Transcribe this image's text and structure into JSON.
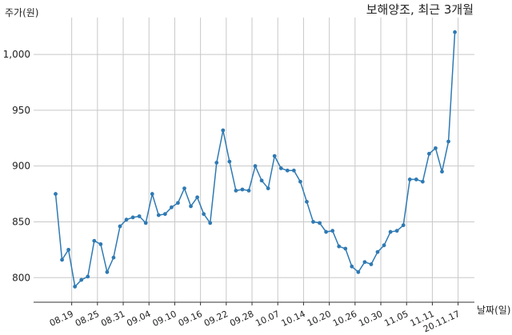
{
  "chart_data": {
    "type": "line",
    "title": "보해양조, 최근 3개월",
    "ylabel": "주가(원)",
    "xlabel": "날짜(일)",
    "ylim": [
      778,
      1033
    ],
    "yticks": [
      800,
      850,
      900,
      950,
      1000
    ],
    "ytick_labels": [
      "800",
      "850",
      "900",
      "950",
      "1,000"
    ],
    "grid": true,
    "xtick_labels": [
      "08.19",
      "08.25",
      "08.31",
      "09.04",
      "09.10",
      "09.16",
      "09.22",
      "09.28",
      "10.07",
      "10.14",
      "10.20",
      "10.26",
      "10.30",
      "11.05",
      "11.11",
      "20.11.17"
    ],
    "xtick_index": [
      2.5,
      6.5,
      10.5,
      14.5,
      18.5,
      22.5,
      26.5,
      30.5,
      34.5,
      38.5,
      42.5,
      46.5,
      50.5,
      54.5,
      58.5,
      62.5
    ],
    "series": [
      {
        "color": "#2f7ab3",
        "values": [
          875,
          816,
          825,
          792,
          798,
          801,
          833,
          830,
          805,
          818,
          846,
          852,
          854,
          855,
          849,
          875,
          856,
          857,
          863,
          867,
          880,
          864,
          872,
          857,
          849,
          903,
          932,
          904,
          878,
          879,
          878,
          900,
          887,
          880,
          909,
          898,
          896,
          896,
          886,
          868,
          850,
          849,
          841,
          842,
          828,
          826,
          810,
          805,
          814,
          812,
          823,
          829,
          841,
          842,
          847,
          888,
          888,
          886,
          911,
          916,
          895,
          922,
          1020
        ]
      }
    ]
  }
}
